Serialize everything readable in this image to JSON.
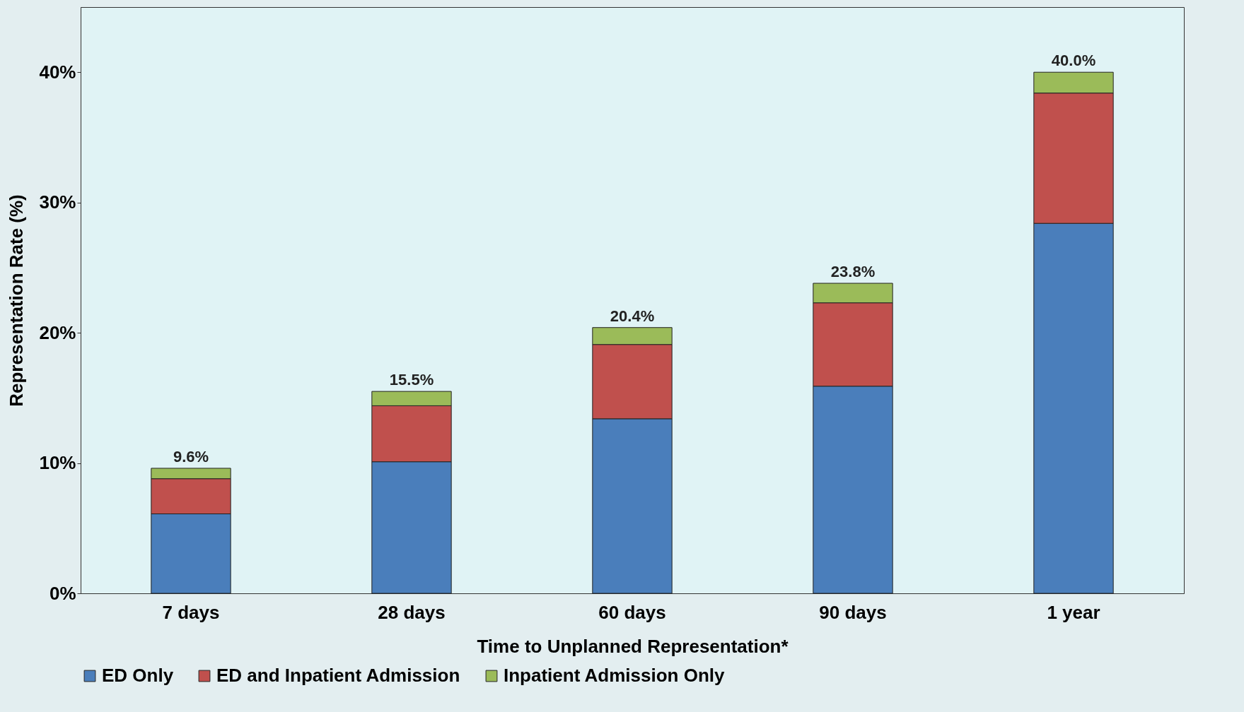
{
  "chart_data": {
    "type": "bar",
    "stacked": true,
    "xlabel": "Time to Unplanned Representation*",
    "ylabel": "Representation  Rate (%)",
    "categories": [
      "7 days",
      "28 days",
      "60 days",
      "90 days",
      "1 year"
    ],
    "series": [
      {
        "name": "ED Only",
        "color": "#4a7ebb",
        "values": [
          6.1,
          10.1,
          13.4,
          15.9,
          28.4
        ]
      },
      {
        "name": "ED and Inpatient Admission",
        "color": "#c0504d",
        "values": [
          2.7,
          4.3,
          5.7,
          6.4,
          10.0
        ]
      },
      {
        "name": "Inpatient Admission Only",
        "color": "#9bbb59",
        "values": [
          0.8,
          1.1,
          1.3,
          1.5,
          1.6
        ]
      }
    ],
    "totals": [
      "9.6%",
      "15.5%",
      "20.4%",
      "23.8%",
      "40.0%"
    ],
    "ylim": [
      0,
      45
    ],
    "yticks": [
      {
        "value": 0,
        "label": "0%"
      },
      {
        "value": 10,
        "label": "10%"
      },
      {
        "value": 20,
        "label": "20%"
      },
      {
        "value": 30,
        "label": "30%"
      },
      {
        "value": 40,
        "label": "40%"
      }
    ],
    "grid": false,
    "legend": "bottom"
  }
}
